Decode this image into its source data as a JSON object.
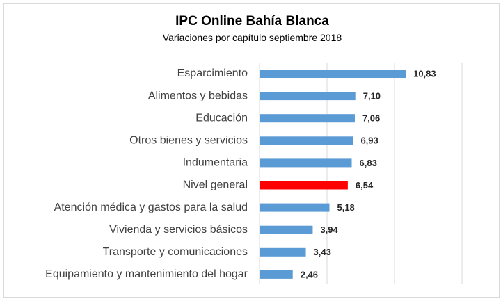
{
  "chart_data": {
    "type": "bar",
    "orientation": "horizontal",
    "title": "IPC Online Bahía Blanca",
    "subtitle": "Variaciones por capítulo septiembre 2018",
    "categories": [
      "Esparcimiento",
      "Alimentos y bebidas",
      "Educación",
      "Otros bienes y servicios",
      "Indumentaria",
      "Nivel general",
      "Atención médica y gastos para la salud",
      "Vivienda y servicios básicos",
      "Transporte y comunicaciones",
      "Equipamiento y mantenimiento del hogar"
    ],
    "values": [
      10.83,
      7.1,
      7.06,
      6.93,
      6.83,
      6.54,
      5.18,
      3.94,
      3.43,
      2.46
    ],
    "value_labels": [
      "10,83",
      "7,10",
      "7,06",
      "6,93",
      "6,83",
      "6,54",
      "5,18",
      "3,94",
      "3,43",
      "2,46"
    ],
    "xlim": [
      0,
      15
    ],
    "grid": true,
    "bar_color": "#5b9bd5",
    "highlight_color": "#ff0000",
    "highlight_category": "Nivel general"
  }
}
